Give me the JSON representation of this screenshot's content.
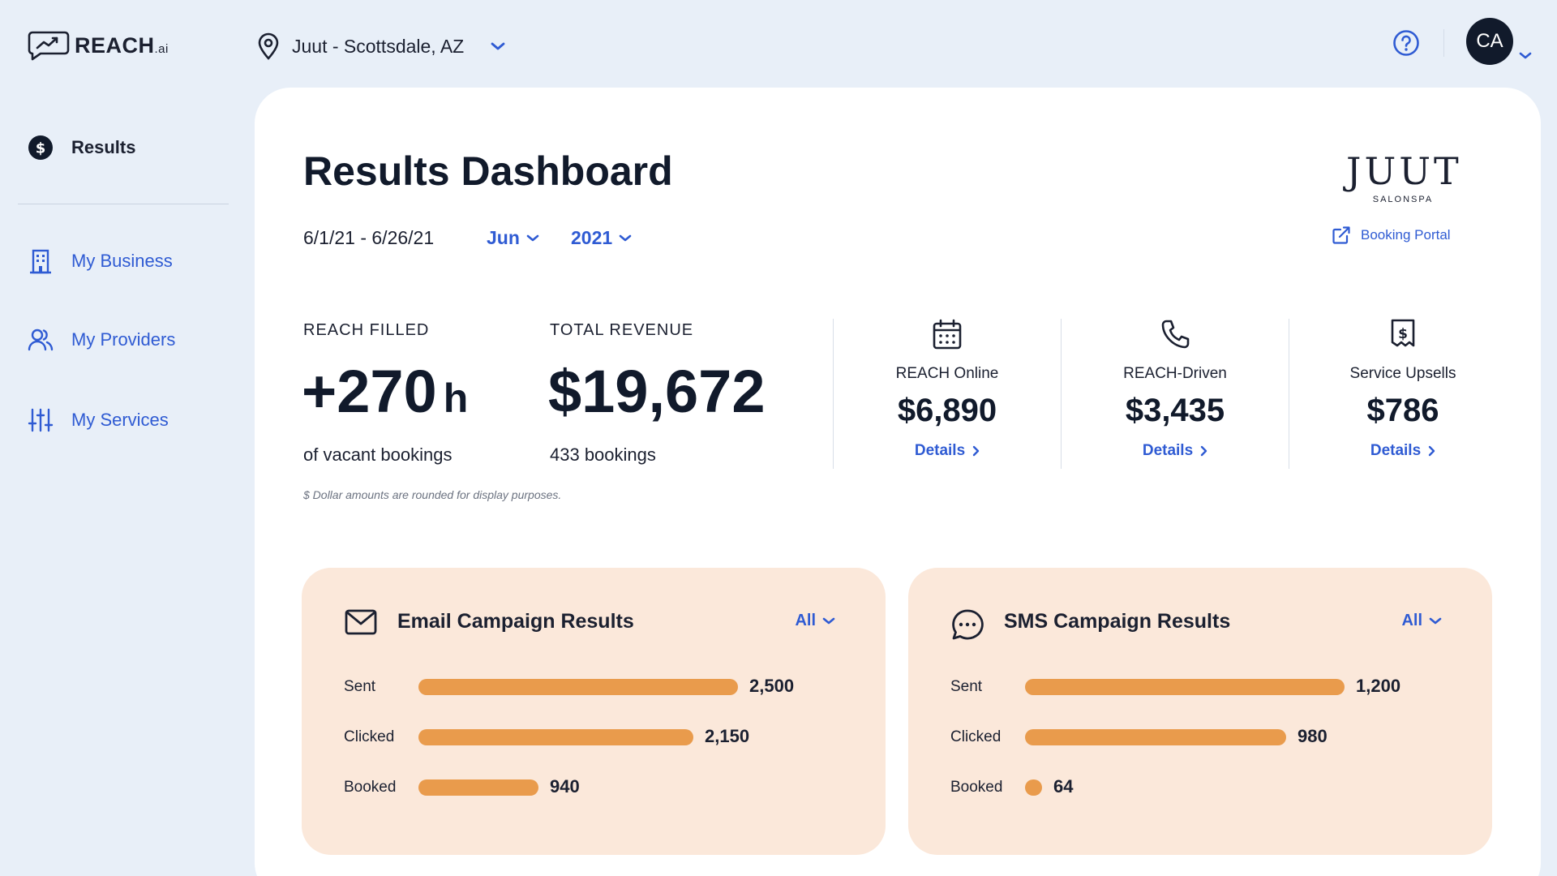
{
  "app": {
    "logo_text": "REACH",
    "logo_suffix": ".ai",
    "logo_icon": "trend-chat-icon"
  },
  "header": {
    "location": "Juut - Scottsdale, AZ",
    "avatar_initials": "CA"
  },
  "sidebar": {
    "items": [
      {
        "label": "Results",
        "icon": "dollar-circle-icon",
        "active": true
      },
      {
        "label": "My Business",
        "icon": "building-icon",
        "active": false
      },
      {
        "label": "My Providers",
        "icon": "users-icon",
        "active": false
      },
      {
        "label": "My Services",
        "icon": "sliders-icon",
        "active": false
      }
    ]
  },
  "main": {
    "title": "Results Dashboard",
    "date_range": "6/1/21 - 6/26/21",
    "month": "Jun",
    "year": "2021",
    "brand": {
      "name": "JUUT",
      "sub": "SALONSPA",
      "portal_label": "Booking Portal"
    },
    "filled": {
      "label": "REACH FILLED",
      "value": "+270",
      "unit": "h",
      "sub": "of vacant bookings"
    },
    "revenue": {
      "label": "TOTAL REVENUE",
      "value": "$19,672",
      "sub": "433 bookings"
    },
    "note": "$ Dollar amounts are rounded for display purposes.",
    "metrics": [
      {
        "label": "REACH Online",
        "value": "$6,890",
        "link": "Details",
        "icon": "calendar-icon"
      },
      {
        "label": "REACH-Driven",
        "value": "$3,435",
        "link": "Details",
        "icon": "phone-icon"
      },
      {
        "label": "Service Upsells",
        "value": "$786",
        "link": "Details",
        "icon": "receipt-dollar-icon"
      }
    ]
  },
  "campaigns": [
    {
      "title": "Email Campaign Results",
      "icon": "envelope-icon",
      "filter": "All",
      "rows": [
        {
          "label": "Sent",
          "value": 2500,
          "display": "2,500"
        },
        {
          "label": "Clicked",
          "value": 2150,
          "display": "2,150"
        },
        {
          "label": "Booked",
          "value": 940,
          "display": "940"
        }
      ]
    },
    {
      "title": "SMS Campaign Results",
      "icon": "chat-bubble-icon",
      "filter": "All",
      "rows": [
        {
          "label": "Sent",
          "value": 1200,
          "display": "1,200"
        },
        {
          "label": "Clicked",
          "value": 980,
          "display": "980"
        },
        {
          "label": "Booked",
          "value": 64,
          "display": "64"
        }
      ]
    }
  ],
  "colors": {
    "background": "#e8eff8",
    "accent": "#2f5bd3",
    "bar": "#e99b4c",
    "card": "#fbe8da"
  }
}
